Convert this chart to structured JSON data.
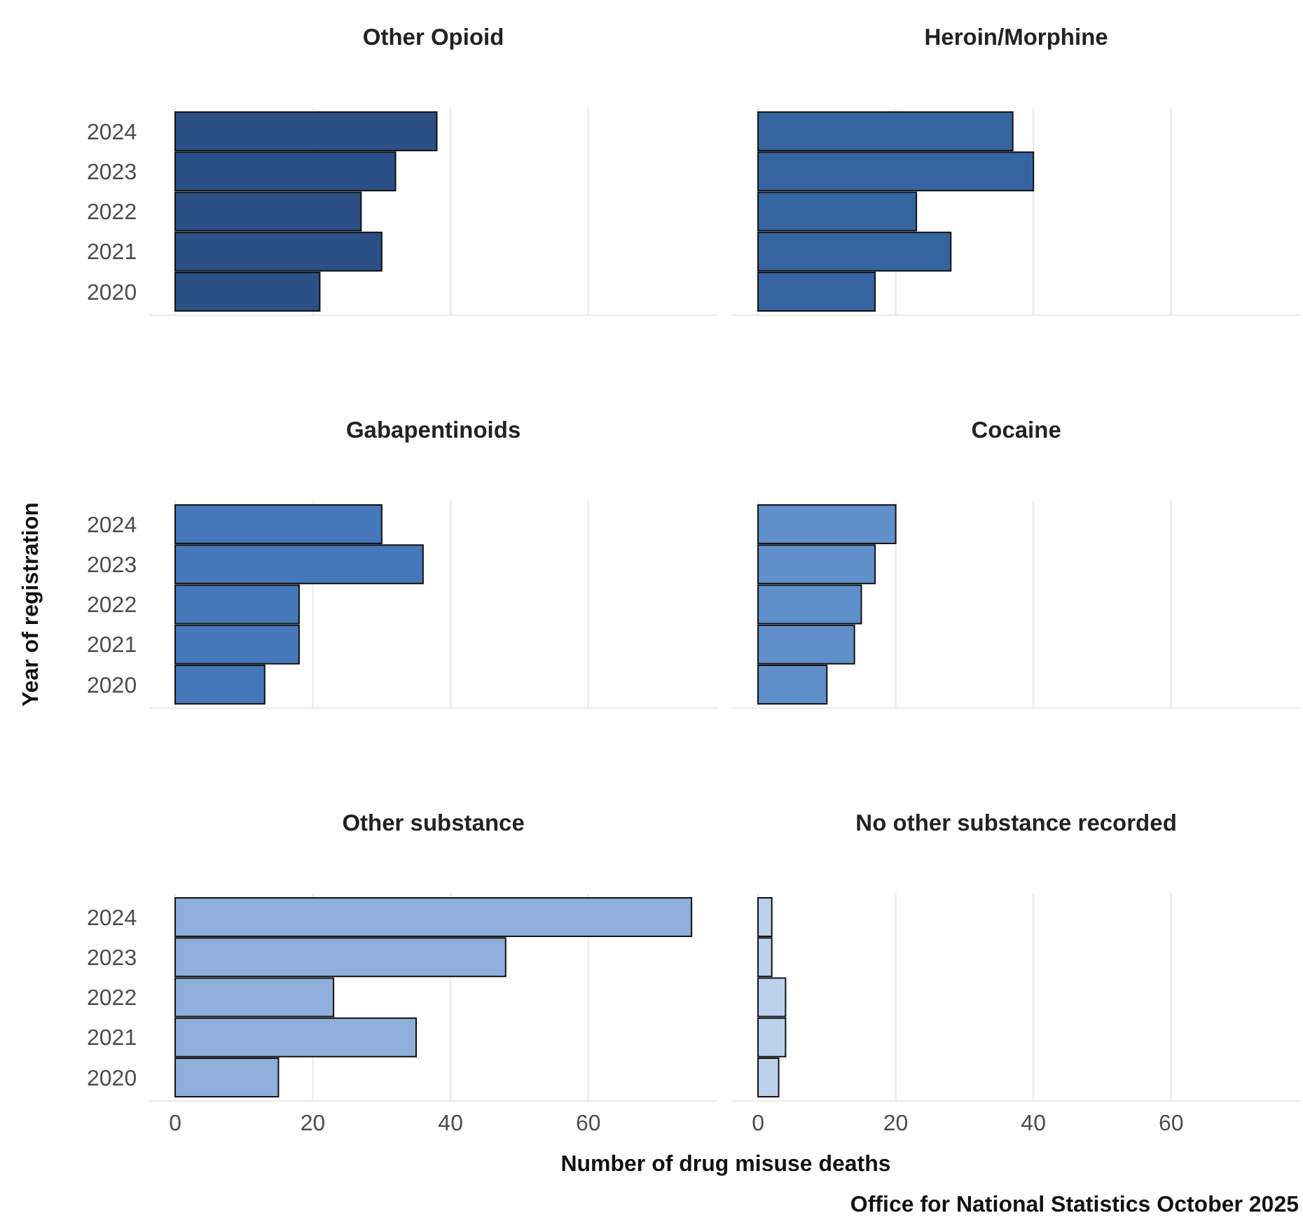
{
  "chart_data": [
    {
      "type": "bar",
      "orientation": "horizontal",
      "title": "Other Opioid",
      "categories": [
        "2024",
        "2023",
        "2022",
        "2021",
        "2020"
      ],
      "values": [
        38,
        32,
        27,
        30,
        21
      ],
      "color": "#2a5085",
      "xlim": [
        -3.75,
        78.75
      ],
      "xticks": [
        0,
        20,
        40,
        60
      ],
      "grid": "x",
      "tick_labels": "y"
    },
    {
      "type": "bar",
      "orientation": "horizontal",
      "title": "Heroin/Morphine",
      "categories": [
        "2024",
        "2023",
        "2022",
        "2021",
        "2020"
      ],
      "values": [
        37,
        40,
        23,
        28,
        17
      ],
      "color": "#3565a0",
      "xlim": [
        -3.75,
        78.75
      ],
      "xticks": [
        0,
        20,
        40,
        60
      ],
      "grid": "x",
      "tick_labels": false
    },
    {
      "type": "bar",
      "orientation": "horizontal",
      "title": "Gabapentinoids",
      "ylabel": "Year of registration",
      "categories": [
        "2024",
        "2023",
        "2022",
        "2021",
        "2020"
      ],
      "values": [
        30,
        36,
        18,
        18,
        13
      ],
      "color": "#4577bb",
      "xlim": [
        -3.75,
        78.75
      ],
      "xticks": [
        0,
        20,
        40,
        60
      ],
      "grid": "x",
      "tick_labels": "y"
    },
    {
      "type": "bar",
      "orientation": "horizontal",
      "title": "Cocaine",
      "categories": [
        "2024",
        "2023",
        "2022",
        "2021",
        "2020"
      ],
      "values": [
        20,
        17,
        15,
        14,
        10
      ],
      "color": "#6090cc",
      "xlim": [
        -3.75,
        78.75
      ],
      "xticks": [
        0,
        20,
        40,
        60
      ],
      "grid": "x",
      "tick_labels": false
    },
    {
      "type": "bar",
      "orientation": "horizontal",
      "title": "Other substance",
      "xlabel": "Number of drug misuse deaths",
      "categories": [
        "2024",
        "2023",
        "2022",
        "2021",
        "2020"
      ],
      "values": [
        75,
        48,
        23,
        35,
        15
      ],
      "color": "#8eaedb",
      "xlim": [
        -3.75,
        78.75
      ],
      "xticks": [
        0,
        20,
        40,
        60
      ],
      "grid": "x"
    },
    {
      "type": "bar",
      "orientation": "horizontal",
      "title": "No other substance recorded",
      "categories": [
        "2024",
        "2023",
        "2022",
        "2021",
        "2020"
      ],
      "values": [
        2,
        2,
        4,
        4,
        3
      ],
      "color": "#bcd1ec",
      "xlim": [
        -3.75,
        78.75
      ],
      "xticks": [
        0,
        20,
        40,
        60
      ],
      "grid": "x",
      "tick_labels": "x",
      "annotations": [
        "Office for National Statistics October 2025"
      ]
    }
  ]
}
